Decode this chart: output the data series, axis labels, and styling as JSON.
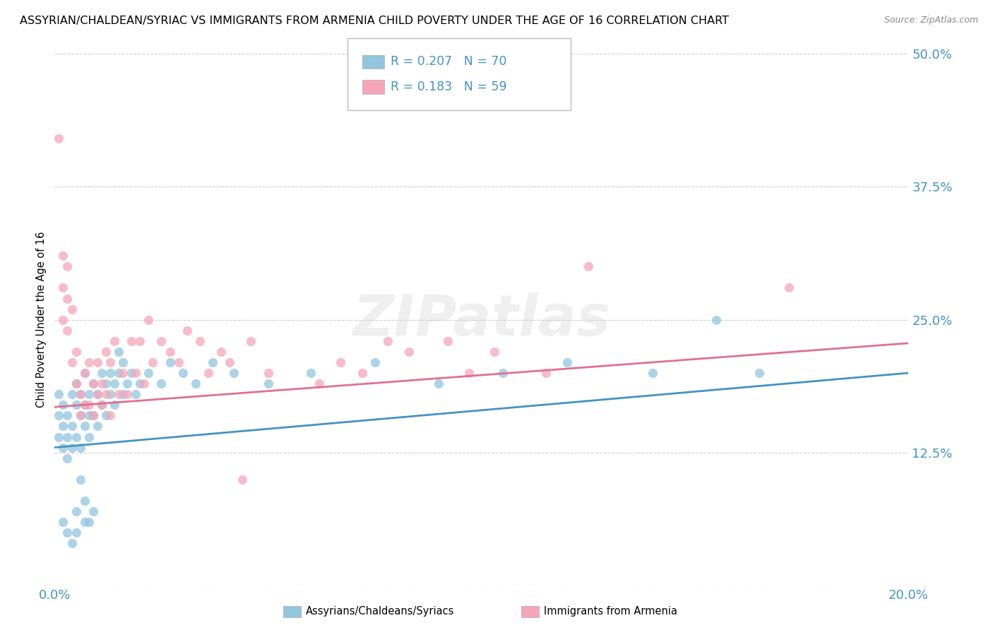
{
  "title": "ASSYRIAN/CHALDEAN/SYRIAC VS IMMIGRANTS FROM ARMENIA CHILD POVERTY UNDER THE AGE OF 16 CORRELATION CHART",
  "source": "Source: ZipAtlas.com",
  "ylabel": "Child Poverty Under the Age of 16",
  "xlim": [
    0.0,
    0.2
  ],
  "ylim": [
    0.0,
    0.5
  ],
  "xticks": [
    0.0,
    0.05,
    0.1,
    0.15,
    0.2
  ],
  "xtick_labels": [
    "0.0%",
    "",
    "",
    "",
    "20.0%"
  ],
  "yticks": [
    0.0,
    0.125,
    0.25,
    0.375,
    0.5
  ],
  "ytick_labels": [
    "",
    "12.5%",
    "25.0%",
    "37.5%",
    "50.0%"
  ],
  "watermark": "ZIPatlas",
  "blue_R": 0.207,
  "blue_N": 70,
  "pink_R": 0.183,
  "pink_N": 59,
  "blue_color": "#92c5de",
  "pink_color": "#f4a6b8",
  "blue_line_color": "#4393c3",
  "pink_line_color": "#e07090",
  "legend_label_blue": "Assyrians/Chaldeans/Syriacs",
  "legend_label_pink": "Immigrants from Armenia",
  "blue_line": [
    0.0,
    0.13,
    0.2,
    0.2
  ],
  "pink_line": [
    0.0,
    0.168,
    0.2,
    0.228
  ],
  "blue_scatter": [
    [
      0.001,
      0.14
    ],
    [
      0.001,
      0.16
    ],
    [
      0.001,
      0.18
    ],
    [
      0.002,
      0.15
    ],
    [
      0.002,
      0.13
    ],
    [
      0.002,
      0.17
    ],
    [
      0.003,
      0.16
    ],
    [
      0.003,
      0.14
    ],
    [
      0.003,
      0.12
    ],
    [
      0.004,
      0.18
    ],
    [
      0.004,
      0.15
    ],
    [
      0.004,
      0.13
    ],
    [
      0.005,
      0.17
    ],
    [
      0.005,
      0.19
    ],
    [
      0.005,
      0.14
    ],
    [
      0.005,
      0.07
    ],
    [
      0.006,
      0.16
    ],
    [
      0.006,
      0.18
    ],
    [
      0.006,
      0.13
    ],
    [
      0.006,
      0.1
    ],
    [
      0.007,
      0.17
    ],
    [
      0.007,
      0.2
    ],
    [
      0.007,
      0.15
    ],
    [
      0.007,
      0.08
    ],
    [
      0.008,
      0.18
    ],
    [
      0.008,
      0.16
    ],
    [
      0.008,
      0.14
    ],
    [
      0.008,
      0.06
    ],
    [
      0.009,
      0.19
    ],
    [
      0.009,
      0.16
    ],
    [
      0.01,
      0.18
    ],
    [
      0.01,
      0.15
    ],
    [
      0.011,
      0.2
    ],
    [
      0.011,
      0.17
    ],
    [
      0.012,
      0.19
    ],
    [
      0.012,
      0.16
    ],
    [
      0.013,
      0.18
    ],
    [
      0.013,
      0.2
    ],
    [
      0.014,
      0.19
    ],
    [
      0.014,
      0.17
    ],
    [
      0.015,
      0.2
    ],
    [
      0.015,
      0.22
    ],
    [
      0.016,
      0.18
    ],
    [
      0.016,
      0.21
    ],
    [
      0.017,
      0.19
    ],
    [
      0.018,
      0.2
    ],
    [
      0.019,
      0.18
    ],
    [
      0.02,
      0.19
    ],
    [
      0.022,
      0.2
    ],
    [
      0.025,
      0.19
    ],
    [
      0.027,
      0.21
    ],
    [
      0.03,
      0.2
    ],
    [
      0.033,
      0.19
    ],
    [
      0.037,
      0.21
    ],
    [
      0.042,
      0.2
    ],
    [
      0.05,
      0.19
    ],
    [
      0.06,
      0.2
    ],
    [
      0.075,
      0.21
    ],
    [
      0.09,
      0.19
    ],
    [
      0.105,
      0.2
    ],
    [
      0.12,
      0.21
    ],
    [
      0.14,
      0.2
    ],
    [
      0.155,
      0.25
    ],
    [
      0.165,
      0.2
    ],
    [
      0.002,
      0.06
    ],
    [
      0.003,
      0.05
    ],
    [
      0.004,
      0.04
    ],
    [
      0.005,
      0.05
    ],
    [
      0.007,
      0.06
    ],
    [
      0.009,
      0.07
    ]
  ],
  "pink_scatter": [
    [
      0.001,
      0.42
    ],
    [
      0.002,
      0.31
    ],
    [
      0.002,
      0.28
    ],
    [
      0.003,
      0.3
    ],
    [
      0.003,
      0.24
    ],
    [
      0.004,
      0.26
    ],
    [
      0.004,
      0.21
    ],
    [
      0.005,
      0.19
    ],
    [
      0.005,
      0.22
    ],
    [
      0.006,
      0.18
    ],
    [
      0.006,
      0.16
    ],
    [
      0.007,
      0.2
    ],
    [
      0.007,
      0.17
    ],
    [
      0.008,
      0.21
    ],
    [
      0.008,
      0.17
    ],
    [
      0.009,
      0.19
    ],
    [
      0.009,
      0.16
    ],
    [
      0.01,
      0.18
    ],
    [
      0.01,
      0.21
    ],
    [
      0.011,
      0.17
    ],
    [
      0.011,
      0.19
    ],
    [
      0.012,
      0.18
    ],
    [
      0.012,
      0.22
    ],
    [
      0.013,
      0.16
    ],
    [
      0.013,
      0.21
    ],
    [
      0.014,
      0.23
    ],
    [
      0.015,
      0.18
    ],
    [
      0.016,
      0.2
    ],
    [
      0.017,
      0.18
    ],
    [
      0.018,
      0.23
    ],
    [
      0.019,
      0.2
    ],
    [
      0.02,
      0.23
    ],
    [
      0.021,
      0.19
    ],
    [
      0.022,
      0.25
    ],
    [
      0.023,
      0.21
    ],
    [
      0.025,
      0.23
    ],
    [
      0.027,
      0.22
    ],
    [
      0.029,
      0.21
    ],
    [
      0.031,
      0.24
    ],
    [
      0.034,
      0.23
    ],
    [
      0.036,
      0.2
    ],
    [
      0.039,
      0.22
    ],
    [
      0.041,
      0.21
    ],
    [
      0.044,
      0.1
    ],
    [
      0.046,
      0.23
    ],
    [
      0.05,
      0.2
    ],
    [
      0.062,
      0.19
    ],
    [
      0.067,
      0.21
    ],
    [
      0.072,
      0.2
    ],
    [
      0.078,
      0.23
    ],
    [
      0.083,
      0.22
    ],
    [
      0.092,
      0.23
    ],
    [
      0.097,
      0.2
    ],
    [
      0.103,
      0.22
    ],
    [
      0.115,
      0.2
    ],
    [
      0.125,
      0.3
    ],
    [
      0.002,
      0.25
    ],
    [
      0.003,
      0.27
    ],
    [
      0.172,
      0.28
    ]
  ],
  "background_color": "#ffffff",
  "grid_color": "#cccccc",
  "axis_tick_color": "#4393c3",
  "title_fontsize": 11.5,
  "label_fontsize": 11
}
